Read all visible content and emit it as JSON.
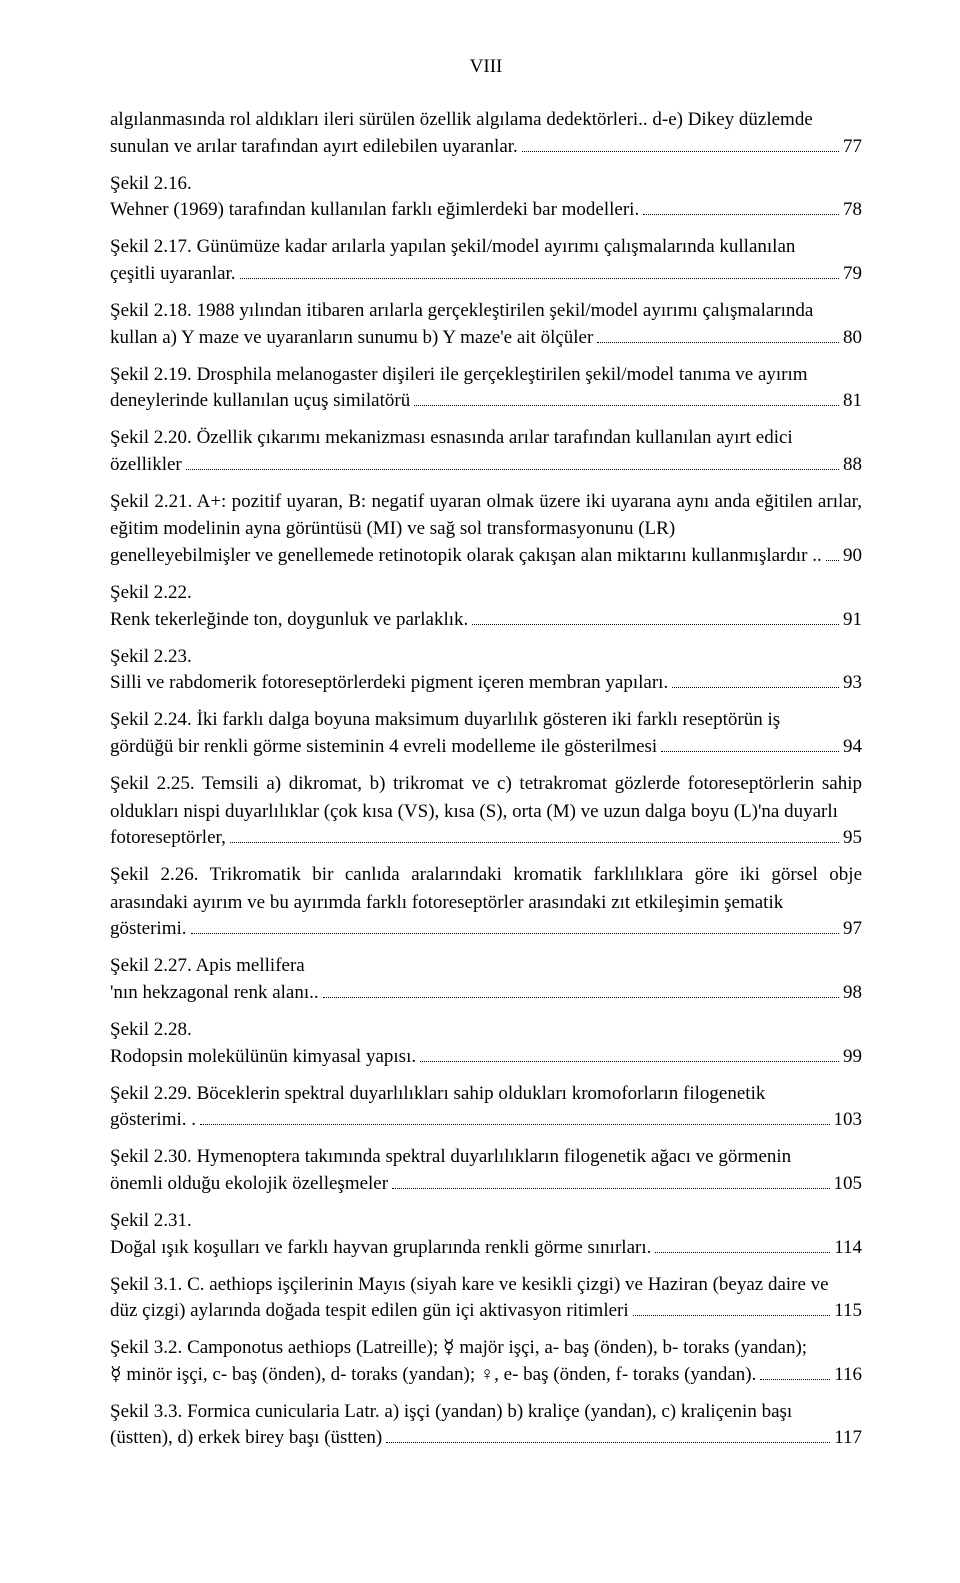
{
  "pageNumber": "VIII",
  "entries": [
    {
      "pre": "algılanmasında rol aldıkları ileri sürülen özellik algılama dedektörleri.. d-e) Dikey düzlemde",
      "last": "sunulan ve arılar tarafından ayırt edilebilen uyaranlar.",
      "page": "77"
    },
    {
      "label": "Şekil 2.16.",
      "last": " Wehner (1969) tarafından kullanılan farklı eğimlerdeki bar modelleri.",
      "page": "78"
    },
    {
      "label": "Şekil 2.17.",
      "pre": " Günümüze kadar arılarla yapılan şekil/model ayırımı çalışmalarında kullanılan",
      "last": "çeşitli uyaranlar.",
      "page": "79"
    },
    {
      "label": "Şekil 2.18.",
      "pre": " 1988 yılından itibaren arılarla gerçekleştirilen şekil/model ayırımı çalışmalarında",
      "last": "kullan a) Y maze ve uyaranların sunumu b) Y maze'e ait ölçüler",
      "page": "80"
    },
    {
      "label": "Şekil 2.19.",
      "italicLead": " Drosphila melanogaster",
      "pre": " dişileri ile gerçekleştirilen şekil/model tanıma ve ayırım",
      "last": "deneylerinde kullanılan uçuş similatörü",
      "page": "81"
    },
    {
      "label": "Şekil 2.20.",
      "pre": " Özellik çıkarımı mekanizması esnasında arılar tarafından kullanılan ayırt edici",
      "last": "özellikler",
      "page": "88"
    },
    {
      "label": "Şekil 2.21.",
      "pre": " A+: pozitif uyaran, B: negatif uyaran olmak üzere iki uyarana aynı anda eğitilen arılar,  eğitim modelinin ayna görüntüsü (MI) ve sağ sol transformasyonunu (LR)",
      "last": "genelleyebilmişler ve genellemede retinotopik olarak çakışan alan miktarını kullanmışlardır ..",
      "page": "90"
    },
    {
      "label": "Şekil 2.22.",
      "last": " Renk tekerleğinde ton, doygunluk ve parlaklık.",
      "page": "91"
    },
    {
      "label": "Şekil 2.23.",
      "last": " Silli ve rabdomerik fotoreseptörlerdeki pigment içeren membran yapıları.",
      "page": "93"
    },
    {
      "label": "Şekil 2.24.",
      "pre": " İki farklı dalga boyuna maksimum duyarlılık gösteren iki farklı reseptörün iş",
      "last": "gördüğü bir renkli görme sisteminin 4 evreli modelleme ile gösterilmesi",
      "page": "94"
    },
    {
      "label": "Şekil 2.25.",
      "pre": " Temsili a) dikromat,  b) trikromat ve c) tetrakromat gözlerde fotoreseptörlerin sahip oldukları nispi duyarlılıklar (çok kısa (VS), kısa (S), orta (M) ve uzun dalga boyu (L)'na duyarlı",
      "last": "fotoreseptörler,",
      "page": "95"
    },
    {
      "label": "Şekil 2.26.",
      "pre": " Trikromatik bir canlıda aralarındaki kromatik farklılıklara göre iki görsel obje arasındaki ayırım ve bu ayırımda farklı fotoreseptörler arasındaki zıt etkileşimin şematik",
      "last": "gösterimi.",
      "page": "97"
    },
    {
      "label": "Şekil 2.27.",
      "italicLead": " Apis mellifera",
      "last": "'nın hekzagonal renk alanı..",
      "page": "98"
    },
    {
      "label": "Şekil 2.28.",
      "last": " Rodopsin molekülünün kimyasal yapısı.",
      "page": "99"
    },
    {
      "label": "Şekil 2.29.",
      "pre": " Böceklerin spektral duyarlılıkları sahip oldukları kromoforların filogenetik",
      "last": "gösterimi. .",
      "page": "103"
    },
    {
      "label": "Şekil 2.30.",
      "pre": " Hymenoptera takımında spektral duyarlılıkların filogenetik ağacı ve görmenin",
      "last": "önemli olduğu ekolojik özelleşmeler",
      "page": "105"
    },
    {
      "label": "Şekil 2.31.",
      "last": " Doğal ışık koşulları ve farklı hayvan gruplarında renkli görme sınırları.",
      "page": "114"
    },
    {
      "label": "Şekil 3.1.",
      "italicLead": " C. aethiops",
      "pre": " işçilerinin Mayıs (siyah kare ve kesikli çizgi) ve Haziran (beyaz daire ve",
      "last": "düz çizgi) aylarında doğada tespit edilen gün içi aktivasyon ritimleri",
      "page": "115"
    },
    {
      "label": "Şekil 3.2.",
      "pre": " Camponotus aethiops (Latreille); ☿ majör işçi, a- baş (önden), b- toraks (yandan);",
      "last": "☿ minör işçi, c- baş (önden), d- toraks (yandan); ♀, e- baş (önden, f- toraks (yandan).",
      "page": "116"
    },
    {
      "label": "Şekil 3.3.",
      "italicLead": " Formica cunicularia",
      "pre": " Latr. ",
      "preBoldTail": "a)",
      "preAfter": " işçi (yandan) ",
      "preBoldTail2": "b)",
      "preAfter2": " kraliçe (yandan), ",
      "preBoldTail3": "c)",
      "preAfter3": " kraliçenin başı",
      "lastLead": "(üstten), ",
      "lastBold": "d)",
      "last": " erkek birey başı (üstten)",
      "page": "117"
    }
  ],
  "colors": {
    "background": "#ffffff",
    "text": "#000000"
  },
  "fontSizePt": 14,
  "fontFamily": "Times New Roman"
}
